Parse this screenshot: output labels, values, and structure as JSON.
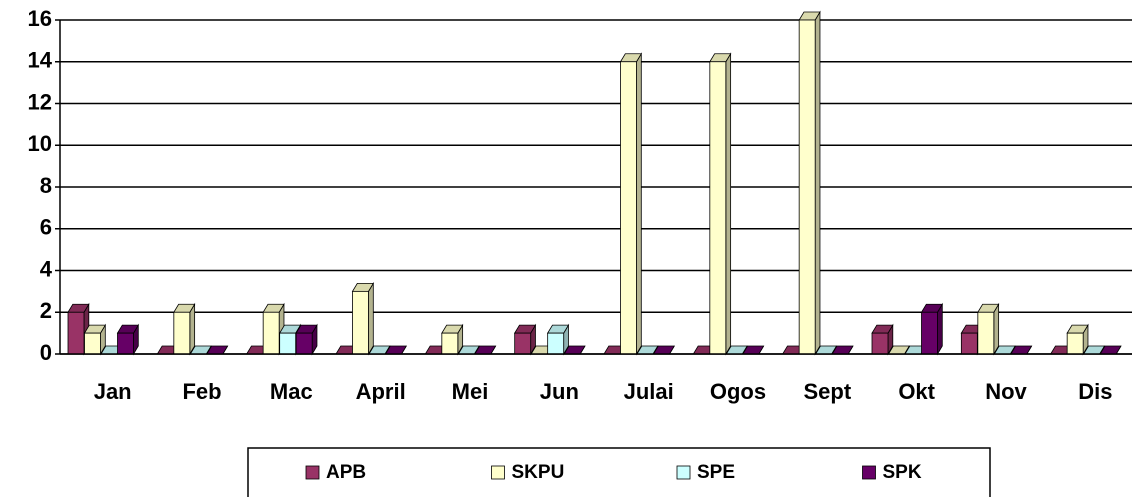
{
  "chart_data": {
    "type": "bar",
    "categories": [
      "Jan",
      "Feb",
      "Mac",
      "April",
      "Mei",
      "Jun",
      "Julai",
      "Ogos",
      "Sept",
      "Okt",
      "Nov",
      "Dis"
    ],
    "series": [
      {
        "name": "APB",
        "color": "#993366",
        "values": [
          2,
          0,
          0,
          0,
          0,
          1,
          0,
          0,
          0,
          1,
          1,
          0
        ]
      },
      {
        "name": "SKPU",
        "color": "#FFFFCC",
        "values": [
          1,
          2,
          2,
          3,
          1,
          0,
          14,
          14,
          16,
          0,
          2,
          1
        ]
      },
      {
        "name": "SPE",
        "color": "#CCFFFF",
        "values": [
          0,
          0,
          1,
          0,
          0,
          1,
          0,
          0,
          0,
          0,
          0,
          0
        ]
      },
      {
        "name": "SPK",
        "color": "#660066",
        "values": [
          1,
          0,
          1,
          0,
          0,
          0,
          0,
          0,
          0,
          2,
          0,
          0
        ]
      }
    ],
    "ylim": [
      0,
      16
    ],
    "yticks": [
      0,
      2,
      4,
      6,
      8,
      10,
      12,
      14,
      16
    ],
    "grid": true,
    "legend": "bottom"
  }
}
